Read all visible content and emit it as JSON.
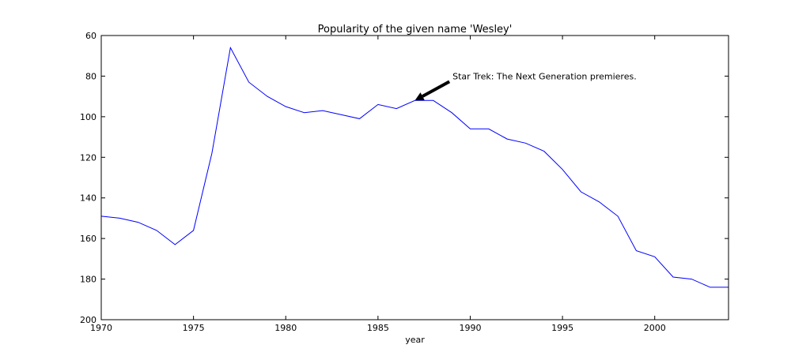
{
  "chart_data": {
    "type": "line",
    "title": "Popularity of the given name 'Wesley'",
    "xlabel": "year",
    "ylabel": "",
    "xlim": [
      1970,
      2004
    ],
    "ylim": [
      60,
      200
    ],
    "y_inverted": true,
    "grid": false,
    "xticks": [
      "1970",
      "1975",
      "1980",
      "1985",
      "1990",
      "1995",
      "2000"
    ],
    "yticks": [
      "60",
      "80",
      "100",
      "120",
      "140",
      "160",
      "180",
      "200"
    ],
    "series": [
      {
        "color": "#0000ff",
        "x": [
          1970,
          1971,
          1972,
          1973,
          1974,
          1975,
          1976,
          1977,
          1978,
          1979,
          1980,
          1981,
          1982,
          1983,
          1984,
          1985,
          1986,
          1987,
          1988,
          1989,
          1990,
          1991,
          1992,
          1993,
          1994,
          1995,
          1996,
          1997,
          1998,
          1999,
          2000,
          2001,
          2002,
          2003,
          2004
        ],
        "y": [
          149,
          150,
          152,
          156,
          163,
          156,
          118,
          66,
          83,
          90,
          95,
          98,
          97,
          99,
          101,
          94,
          96,
          92,
          92,
          98,
          106,
          106,
          111,
          113,
          117,
          126,
          137,
          142,
          149,
          166,
          169,
          179,
          180,
          184,
          184
        ]
      }
    ],
    "annotation": {
      "text": "Star Trek: The Next Generation premieres.",
      "point": [
        1987,
        92
      ],
      "text_at": [
        1989,
        80
      ],
      "arrow_color": "#000000"
    }
  }
}
